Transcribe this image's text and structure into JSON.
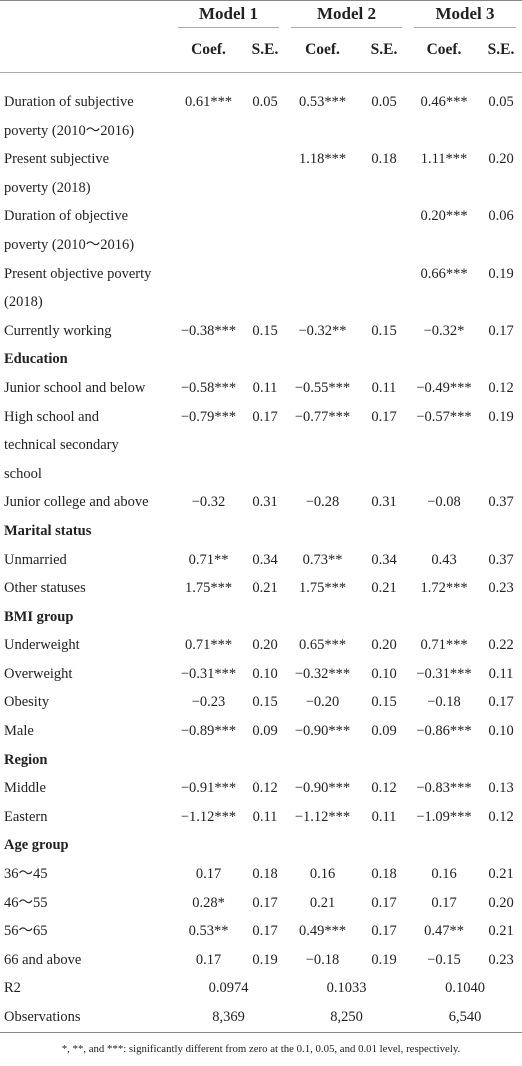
{
  "header": {
    "models": [
      "Model 1",
      "Model 2",
      "Model 3"
    ],
    "subheaders": [
      "Coef.",
      "S.E.",
      "Coef.",
      "S.E.",
      "Coef.",
      "S.E."
    ]
  },
  "table": {
    "rows": [
      {
        "label": "Duration of subjective\npoverty (2010～2016)",
        "cells": [
          "0.61***",
          "0.05",
          "0.53***",
          "0.05",
          "0.46***",
          "0.05"
        ]
      },
      {
        "label": "Present subjective\npoverty (2018)",
        "cells": [
          null,
          null,
          "1.18***",
          "0.18",
          "1.11***",
          "0.20"
        ]
      },
      {
        "label": "Duration of objective\npoverty (2010～2016)",
        "cells": [
          null,
          null,
          null,
          null,
          "0.20***",
          "0.06"
        ]
      },
      {
        "label": "Present objective poverty\n(2018)",
        "cells": [
          null,
          null,
          null,
          null,
          "0.66***",
          "0.19"
        ]
      },
      {
        "label": "Currently working",
        "cells": [
          "−0.38***",
          "0.15",
          "−0.32**",
          "0.15",
          "−0.32*",
          "0.17"
        ]
      },
      {
        "label": "Education"
      },
      {
        "label": "Junior school and below",
        "cells": [
          "−0.58***",
          "0.11",
          "−0.55***",
          "0.11",
          "−0.49***",
          "0.12"
        ]
      },
      {
        "label": "High school and\ntechnical secondary\nschool",
        "cells": [
          "−0.79***",
          "0.17",
          "−0.77***",
          "0.17",
          "−0.57***",
          "0.19"
        ]
      },
      {
        "label": "Junior college and above",
        "cells": [
          "−0.32",
          "0.31",
          "−0.28",
          "0.31",
          "−0.08",
          "0.37"
        ]
      },
      {
        "label": "Marital status"
      },
      {
        "label": "Unmarried",
        "cells": [
          "0.71**",
          "0.34",
          "0.73**",
          "0.34",
          "0.43",
          "0.37"
        ]
      },
      {
        "label": "Other statuses",
        "cells": [
          "1.75***",
          "0.21",
          "1.75***",
          "0.21",
          "1.72***",
          "0.23"
        ]
      },
      {
        "label": "BMI group"
      },
      {
        "label": "Underweight",
        "cells": [
          "0.71***",
          "0.20",
          "0.65***",
          "0.20",
          "0.71***",
          "0.22"
        ]
      },
      {
        "label": "Overweight",
        "cells": [
          "−0.31***",
          "0.10",
          "−0.32***",
          "0.10",
          "−0.31***",
          "0.11"
        ]
      },
      {
        "label": "Obesity",
        "cells": [
          "−0.23",
          "0.15",
          "−0.20",
          "0.15",
          "−0.18",
          "0.17"
        ]
      },
      {
        "label": "Male",
        "cells": [
          "−0.89***",
          "0.09",
          "−0.90***",
          "0.09",
          "−0.86***",
          "0.10"
        ]
      },
      {
        "label": "Region"
      },
      {
        "label": "Middle",
        "cells": [
          "−0.91***",
          "0.12",
          "−0.90***",
          "0.12",
          "−0.83***",
          "0.13"
        ]
      },
      {
        "label": "Eastern",
        "cells": [
          "−1.12***",
          "0.11",
          "−1.12***",
          "0.11",
          "−1.09***",
          "0.12"
        ]
      },
      {
        "label": "Age group"
      },
      {
        "label": "36～45",
        "cells": [
          "0.17",
          "0.18",
          "0.16",
          "0.18",
          "0.16",
          "0.21"
        ]
      },
      {
        "label": "46～55",
        "cells": [
          "0.28*",
          "0.17",
          "0.21",
          "0.17",
          "0.17",
          "0.20"
        ]
      },
      {
        "label": "56～65",
        "cells": [
          "0.53**",
          "0.17",
          "0.49***",
          "0.17",
          "0.47**",
          "0.21"
        ]
      },
      {
        "label": "66 and above",
        "cells": [
          "0.17",
          "0.19",
          "−0.18",
          "0.19",
          "−0.15",
          "0.23"
        ]
      },
      {
        "label": "R2",
        "cells": [
          "0.0974",
          "0.1033",
          "0.1040"
        ]
      },
      {
        "label": "Observations",
        "cells": [
          "8,369",
          "8,250",
          "6,540"
        ]
      }
    ]
  },
  "footnote": "*, **, and ***: significantly different from zero at the 0.1, 0.05, and 0.01 level, respectively."
}
